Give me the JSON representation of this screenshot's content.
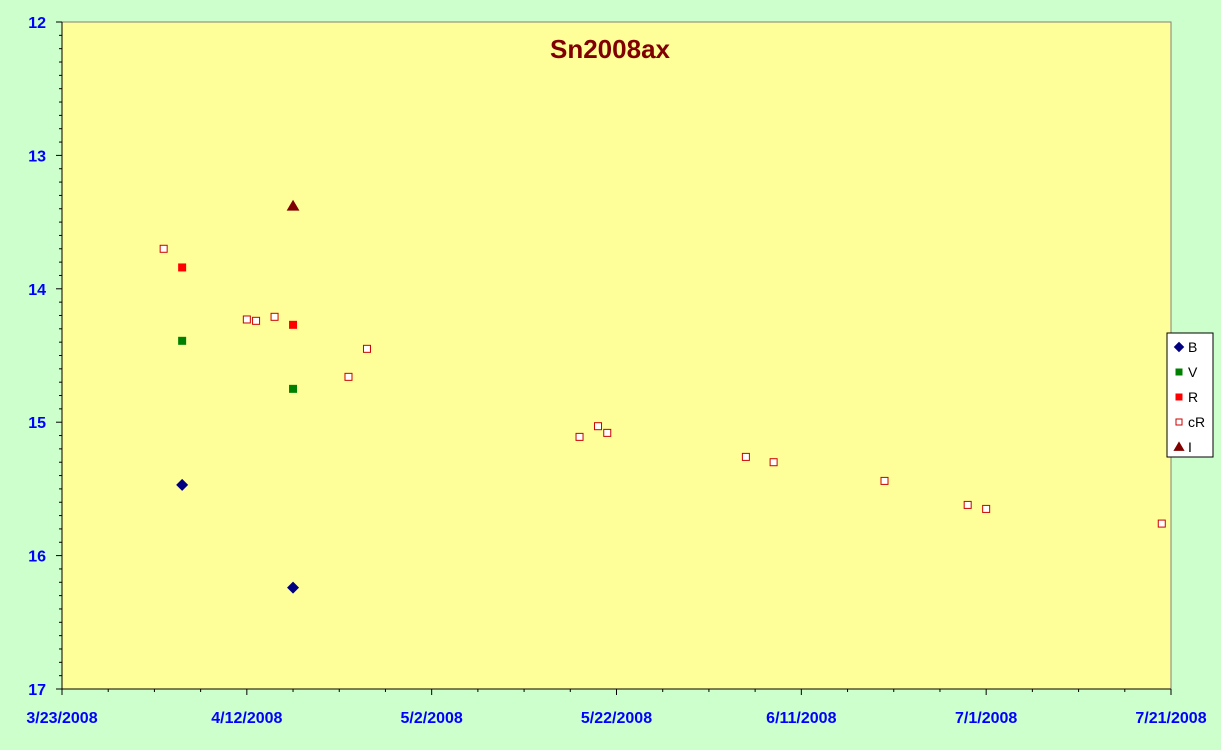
{
  "chart_data": {
    "type": "scatter",
    "title": "Sn2008ax",
    "xlabel": "",
    "ylabel": "",
    "x_axis": {
      "type": "date",
      "min": "2008-03-23",
      "max": "2008-07-21",
      "major_step_days": 20,
      "minor_step_days": 5,
      "tick_labels": [
        "3/23/2008",
        "4/12/2008",
        "5/2/2008",
        "5/22/2008",
        "6/11/2008",
        "7/1/2008",
        "7/21/2008"
      ]
    },
    "y_axis": {
      "min": 12,
      "max": 17,
      "reversed": true,
      "major_step": 1,
      "minor_step": 0.1,
      "tick_labels": [
        "12",
        "13",
        "14",
        "15",
        "16",
        "17"
      ]
    },
    "grid": false,
    "legend_position": "right",
    "plot_background": "#ffff99",
    "series": [
      {
        "name": "B",
        "marker": "diamond",
        "color": "#000080",
        "filled": true,
        "points": [
          {
            "x": "2008-04-05",
            "y": 15.47
          },
          {
            "x": "2008-04-17",
            "y": 16.24
          }
        ]
      },
      {
        "name": "V",
        "marker": "square",
        "color": "#008000",
        "filled": true,
        "points": [
          {
            "x": "2008-04-05",
            "y": 14.39
          },
          {
            "x": "2008-04-17",
            "y": 14.75
          }
        ]
      },
      {
        "name": "R",
        "marker": "square",
        "color": "#ff0000",
        "filled": true,
        "points": [
          {
            "x": "2008-04-05",
            "y": 13.84
          },
          {
            "x": "2008-04-17",
            "y": 14.27
          }
        ]
      },
      {
        "name": "cR",
        "marker": "square",
        "color": "#cc0000",
        "filled": false,
        "points": [
          {
            "x": "2008-04-03",
            "y": 13.7
          },
          {
            "x": "2008-04-12",
            "y": 14.23
          },
          {
            "x": "2008-04-13",
            "y": 14.24
          },
          {
            "x": "2008-04-15",
            "y": 14.21
          },
          {
            "x": "2008-04-23",
            "y": 14.66
          },
          {
            "x": "2008-04-25",
            "y": 14.45
          },
          {
            "x": "2008-05-18",
            "y": 15.11
          },
          {
            "x": "2008-05-20",
            "y": 15.03
          },
          {
            "x": "2008-05-21",
            "y": 15.08
          },
          {
            "x": "2008-06-05",
            "y": 15.26
          },
          {
            "x": "2008-06-08",
            "y": 15.3
          },
          {
            "x": "2008-06-20",
            "y": 15.44
          },
          {
            "x": "2008-06-29",
            "y": 15.62
          },
          {
            "x": "2008-07-01",
            "y": 15.65
          },
          {
            "x": "2008-07-20",
            "y": 15.76
          }
        ]
      },
      {
        "name": "I",
        "marker": "triangle",
        "color": "#800000",
        "filled": true,
        "points": [
          {
            "x": "2008-04-17",
            "y": 13.38
          }
        ]
      }
    ]
  }
}
